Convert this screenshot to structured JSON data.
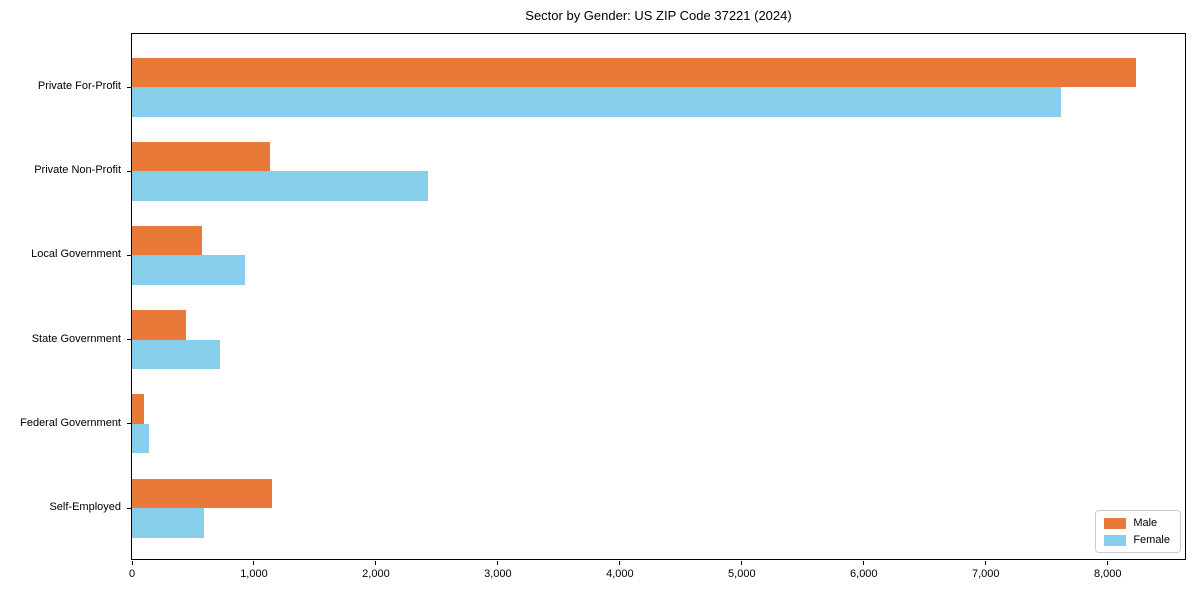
{
  "title": "Sector by Gender: US ZIP Code 37221 (2024)",
  "chart_data": {
    "type": "bar",
    "orientation": "horizontal",
    "title": "Sector by Gender: US ZIP Code 37221 (2024)",
    "categories": [
      "Private For-Profit",
      "Private Non-Profit",
      "Local Government",
      "State Government",
      "Federal Government",
      "Self-Employed"
    ],
    "series": [
      {
        "name": "Male",
        "color": "#E97938",
        "values": [
          8230,
          1130,
          575,
          445,
          100,
          1150
        ]
      },
      {
        "name": "Female",
        "color": "#87CEEB",
        "values": [
          7620,
          2430,
          925,
          720,
          140,
          590
        ]
      }
    ],
    "xlabel": "",
    "ylabel": "",
    "xlim": [
      0,
      8650
    ],
    "x_ticks": [
      0,
      1000,
      2000,
      3000,
      4000,
      5000,
      6000,
      7000,
      8000
    ],
    "grid": false,
    "legend": {
      "position": "lower right",
      "entries": [
        "Male",
        "Female"
      ]
    }
  }
}
